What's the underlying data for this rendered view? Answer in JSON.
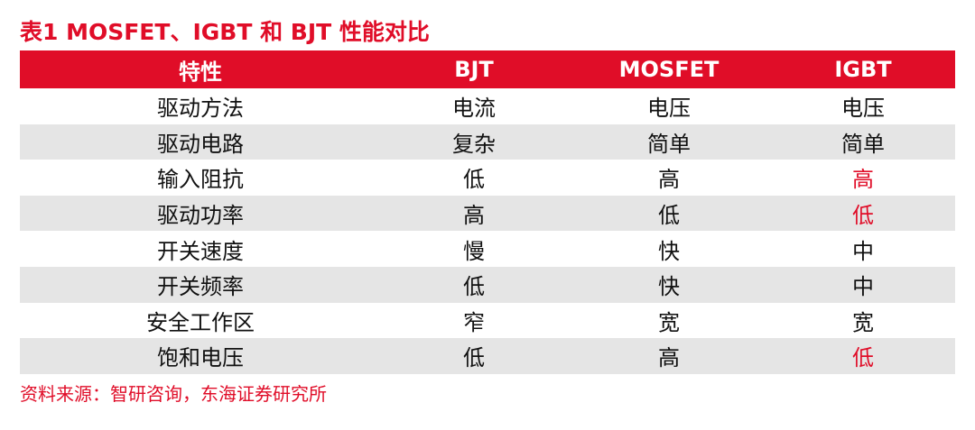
{
  "title": "表1  MOSFET、IGBT 和 BJT 性能对比",
  "accent_color": "#e00d28",
  "table": {
    "headers": [
      "特性",
      "BJT",
      "MOSFET",
      "IGBT"
    ],
    "rows": [
      {
        "cells": [
          "驱动方法",
          "电流",
          "电压",
          "电压"
        ],
        "highlight_igbt": false
      },
      {
        "cells": [
          "驱动电路",
          "复杂",
          "简单",
          "简单"
        ],
        "highlight_igbt": false
      },
      {
        "cells": [
          "输入阻抗",
          "低",
          "高",
          "高"
        ],
        "highlight_igbt": true
      },
      {
        "cells": [
          "驱动功率",
          "高",
          "低",
          "低"
        ],
        "highlight_igbt": true
      },
      {
        "cells": [
          "开关速度",
          "慢",
          "快",
          "中"
        ],
        "highlight_igbt": false
      },
      {
        "cells": [
          "开关频率",
          "低",
          "快",
          "中"
        ],
        "highlight_igbt": false
      },
      {
        "cells": [
          "安全工作区",
          "窄",
          "宽",
          "宽"
        ],
        "highlight_igbt": false
      },
      {
        "cells": [
          "饱和电压",
          "低",
          "高",
          "低"
        ],
        "highlight_igbt": true
      }
    ]
  },
  "source": "资料来源：智研咨询，东海证券研究所"
}
